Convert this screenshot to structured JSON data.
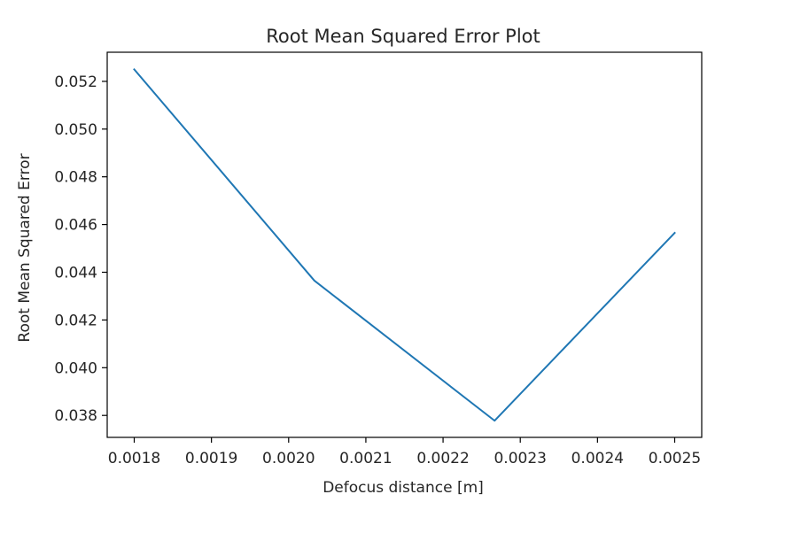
{
  "chart_data": {
    "type": "line",
    "title": "Root Mean Squared Error Plot",
    "xlabel": "Defocus distance [m]",
    "ylabel": "Root Mean Squared Error",
    "xlim": [
      0.001765,
      0.002535
    ],
    "ylim": [
      0.03708,
      0.05322
    ],
    "grid": false,
    "xticks": [
      0.0018,
      0.0019,
      0.002,
      0.0021,
      0.0022,
      0.0023,
      0.0024,
      0.0025
    ],
    "xtick_labels": [
      "0.0018",
      "0.0019",
      "0.0020",
      "0.0021",
      "0.0022",
      "0.0023",
      "0.0024",
      "0.0025"
    ],
    "yticks": [
      0.038,
      0.04,
      0.042,
      0.044,
      0.046,
      0.048,
      0.05,
      0.052
    ],
    "ytick_labels": [
      "0.038",
      "0.040",
      "0.042",
      "0.044",
      "0.046",
      "0.048",
      "0.050",
      "0.052"
    ],
    "series": [
      {
        "color": "#1f77b4",
        "x": [
          0.0018,
          0.0020333,
          0.0022667,
          0.0025
        ],
        "y": [
          0.0525,
          0.04365,
          0.03778,
          0.04565
        ]
      }
    ]
  }
}
